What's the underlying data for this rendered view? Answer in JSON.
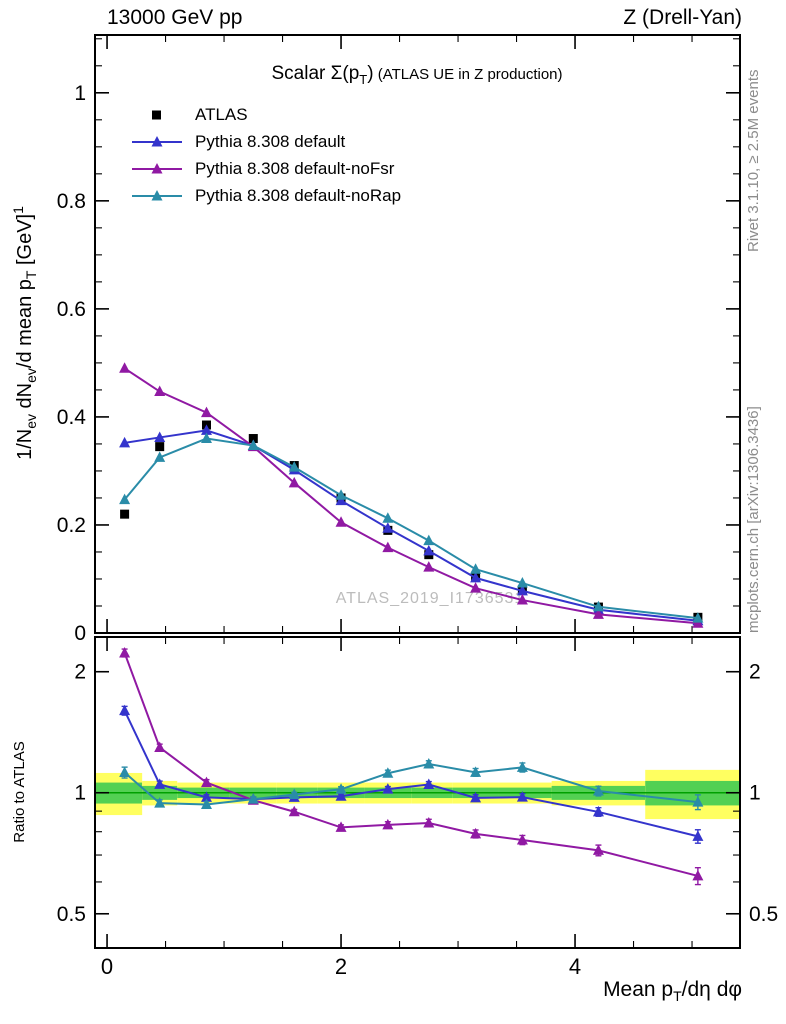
{
  "header": {
    "left": "13000 GeV pp",
    "right": "Z (Drell-Yan)"
  },
  "title": {
    "a": "Scalar Σ(p",
    "sub": "T",
    "b": ")",
    "c": " (ATLAS UE in Z production)"
  },
  "watermark": "ATLAS_2019_I1736531",
  "side_notes": {
    "top": "Rivet 3.1.10, ≥ 2.5M events",
    "bottom": "mcplots.cern.ch [arXiv:1306.3436]"
  },
  "labels": {
    "y_main": {
      "p1": "1/N",
      "s1": "ev",
      "p2": " dN",
      "s2": "ev",
      "p3": "/d mean p",
      "s3": "T",
      "p4": " [GeV]",
      "sup": "1"
    },
    "ratio": "Ratio to ATLAS",
    "x": {
      "p1": "Mean p",
      "s1": "T",
      "p2": "/dη dφ"
    }
  },
  "chart_data": {
    "type": "line",
    "title": "Scalar Σ(p_T) (ATLAS UE in Z production)",
    "xlabel": "Mean p_T/dη dφ",
    "ylabel": "1/N_ev dN_ev/d mean p_T [GeV]^1",
    "xlim": [
      -0.103,
      5.41
    ],
    "xticks": [
      0,
      2,
      4
    ],
    "xminor_step": 0.5,
    "x": [
      0.15,
      0.45,
      0.85,
      1.25,
      1.6,
      2.0,
      2.4,
      2.75,
      3.15,
      3.55,
      4.2,
      5.05
    ],
    "main": {
      "ylim": [
        0,
        1.107
      ],
      "yticks": [
        0,
        0.2,
        0.4,
        0.6,
        0.8,
        1
      ]
    },
    "series": [
      {
        "name": "ATLAS",
        "color": "#000000",
        "marker": "square",
        "line": false,
        "values": [
          0.22,
          0.345,
          0.385,
          0.36,
          0.31,
          0.25,
          0.19,
          0.145,
          0.105,
          0.08,
          0.048,
          0.029
        ],
        "errors": [
          0.006,
          0.006,
          0.006,
          0.006,
          0.005,
          0.005,
          0.004,
          0.004,
          0.003,
          0.003,
          0.002,
          0.002
        ]
      },
      {
        "name": "Pythia 8.308 default",
        "color": "#3434cc",
        "marker": "triangle",
        "line": true,
        "values": [
          0.352,
          0.362,
          0.375,
          0.347,
          0.302,
          0.245,
          0.194,
          0.152,
          0.102,
          0.078,
          0.043,
          0.0226
        ]
      },
      {
        "name": "Pythia 8.308 default-noFsr",
        "color": "#9019a3",
        "marker": "triangle",
        "line": true,
        "values": [
          0.49,
          0.447,
          0.408,
          0.345,
          0.278,
          0.205,
          0.158,
          0.122,
          0.083,
          0.061,
          0.0345,
          0.018
        ]
      },
      {
        "name": "Pythia 8.308 default-noRap",
        "color": "#2a8ca8",
        "marker": "triangle",
        "line": true,
        "values": [
          0.247,
          0.325,
          0.36,
          0.347,
          0.307,
          0.255,
          0.2125,
          0.171,
          0.118,
          0.0925,
          0.0485,
          0.0275
        ]
      }
    ],
    "ratio": {
      "ylim": [
        0.411,
        2.44
      ],
      "yticks": [
        0.5,
        1,
        2
      ],
      "yminors": [
        0.6,
        0.7,
        0.8,
        0.9
      ],
      "ref": 1,
      "ref_color": "#00a000",
      "band_yellow_color": "#ffff60",
      "band_green_color": "#53d053",
      "band_edges": [
        -0.103,
        0.3,
        0.6,
        1.05,
        1.45,
        1.8,
        2.2,
        2.6,
        2.95,
        3.35,
        3.8,
        4.6,
        5.41
      ],
      "band_yellow": [
        [
          0.88,
          1.12
        ],
        [
          0.93,
          1.07
        ],
        [
          0.94,
          1.06
        ],
        [
          0.94,
          1.06
        ],
        [
          0.94,
          1.06
        ],
        [
          0.94,
          1.06
        ],
        [
          0.94,
          1.06
        ],
        [
          0.94,
          1.06
        ],
        [
          0.94,
          1.06
        ],
        [
          0.94,
          1.06
        ],
        [
          0.93,
          1.07
        ],
        [
          0.86,
          1.14
        ]
      ],
      "band_green": [
        [
          0.94,
          1.06
        ],
        [
          0.96,
          1.04
        ],
        [
          0.97,
          1.03
        ],
        [
          0.97,
          1.03
        ],
        [
          0.97,
          1.03
        ],
        [
          0.97,
          1.03
        ],
        [
          0.97,
          1.03
        ],
        [
          0.97,
          1.03
        ],
        [
          0.97,
          1.03
        ],
        [
          0.97,
          1.03
        ],
        [
          0.96,
          1.04
        ],
        [
          0.93,
          1.07
        ]
      ],
      "series": [
        {
          "name": "Pythia 8.308 default",
          "color": "#3434cc",
          "values": [
            1.6,
            1.049,
            0.974,
            0.964,
            0.974,
            0.98,
            1.021,
            1.048,
            0.971,
            0.975,
            0.896,
            0.779
          ],
          "errors": [
            0.04,
            0.02,
            0.015,
            0.012,
            0.012,
            0.012,
            0.015,
            0.018,
            0.018,
            0.02,
            0.022,
            0.03
          ]
        },
        {
          "name": "Pythia 8.308 default-noFsr",
          "color": "#9019a3",
          "values": [
            2.227,
            1.296,
            1.06,
            0.958,
            0.897,
            0.82,
            0.832,
            0.841,
            0.79,
            0.763,
            0.719,
            0.621
          ],
          "errors": [
            0.05,
            0.025,
            0.018,
            0.013,
            0.012,
            0.012,
            0.015,
            0.018,
            0.018,
            0.02,
            0.022,
            0.03
          ]
        },
        {
          "name": "Pythia 8.308 default-noRap",
          "color": "#2a8ca8",
          "values": [
            1.123,
            0.942,
            0.935,
            0.964,
            0.99,
            1.02,
            1.118,
            1.179,
            1.124,
            1.156,
            1.01,
            0.948
          ],
          "errors": [
            0.035,
            0.018,
            0.015,
            0.012,
            0.012,
            0.015,
            0.02,
            0.022,
            0.025,
            0.03,
            0.028,
            0.04
          ]
        }
      ]
    }
  }
}
